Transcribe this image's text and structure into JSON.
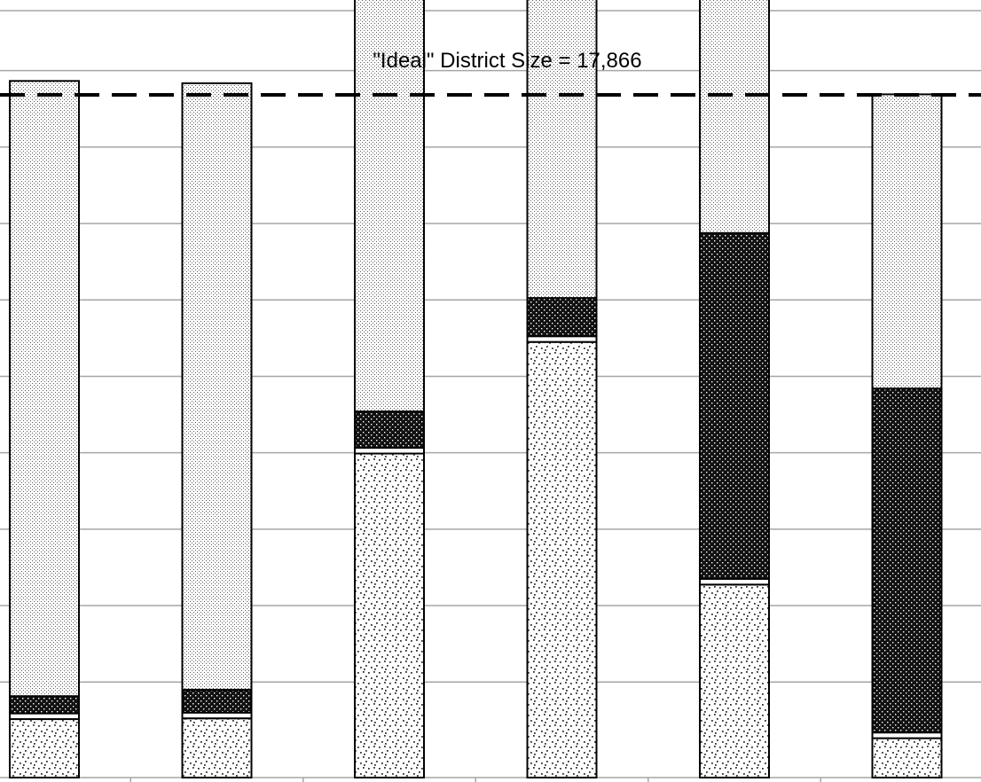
{
  "annotation": {
    "ideal_label": "\"Ideal\" District Size = 17,866"
  },
  "colors": {
    "background": "#ffffff",
    "grid": "#a6a6a6",
    "border": "#000000",
    "reference_line": "#000000"
  },
  "chart_data": {
    "type": "bar",
    "stacked": true,
    "categories": [
      "",
      "",
      "",
      "",
      "",
      ""
    ],
    "series": [
      {
        "values": [
          1530,
          1550,
          8480,
          11400,
          5050,
          1030
        ]
      },
      {
        "values": [
          150,
          150,
          150,
          150,
          150,
          150
        ]
      },
      {
        "values": [
          450,
          600,
          950,
          1000,
          9050,
          9000
        ]
      },
      {
        "values": [
          16100,
          15870,
          14230,
          11280,
          10230,
          7700
        ]
      }
    ],
    "series_patterns": [
      "light-dots",
      "white-band",
      "dense-dark",
      "fine-stipple"
    ],
    "reference_line": {
      "value": 17866,
      "style": "dashed"
    },
    "ylim": [
      0,
      25000
    ],
    "ytick_step": 2500,
    "grid": true,
    "legend": "none"
  }
}
